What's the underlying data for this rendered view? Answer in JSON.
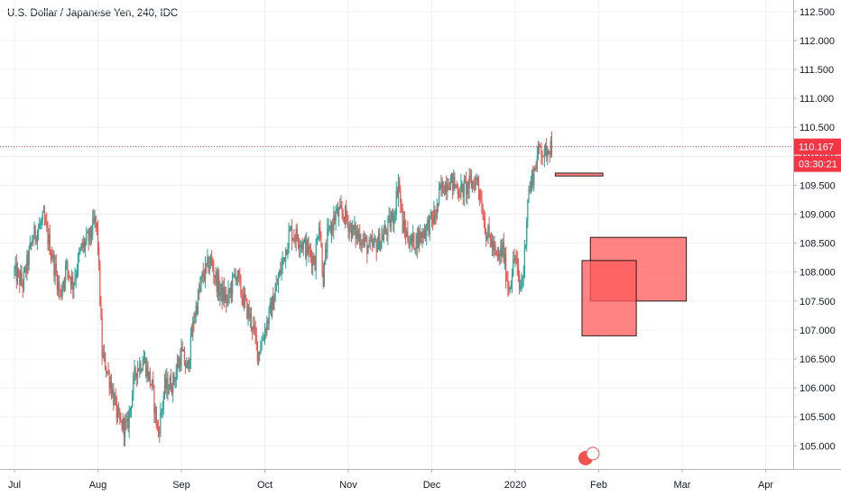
{
  "chart_data": {
    "type": "candlestick",
    "title": "U.S. Dollar / Japanese Yen, 240, IDC",
    "y_ticks": [
      "112.500",
      "112.000",
      "111.500",
      "111.000",
      "110.500",
      "110.000",
      "109.500",
      "109.000",
      "108.500",
      "108.000",
      "107.500",
      "107.000",
      "106.500",
      "106.000",
      "105.500",
      "105.000"
    ],
    "y_tick_values": [
      112.5,
      112.0,
      111.5,
      111.0,
      110.5,
      110.0,
      109.5,
      109.0,
      108.5,
      108.0,
      107.5,
      107.0,
      106.5,
      106.0,
      105.5,
      105.0
    ],
    "ylim": [
      104.6,
      112.7
    ],
    "x_ticks": [
      "Jul",
      "Aug",
      "Sep",
      "Oct",
      "Nov",
      "Dec",
      "2020",
      "Feb",
      "Mar",
      "Apr"
    ],
    "x_tick_months": [
      0,
      1,
      2,
      3,
      4,
      5,
      6,
      7,
      8,
      9
    ],
    "last_price": "110.167",
    "last_price_value": 110.167,
    "countdown": "03:30:21",
    "colors": {
      "up": "#26a69a",
      "down": "#ef5350",
      "price_line": "#f23645",
      "zone_fill": "#ff5a5a",
      "zone_stroke": "#2a1a1a"
    },
    "price_path": [
      [
        0.0,
        108.0
      ],
      [
        0.1,
        107.8
      ],
      [
        0.22,
        108.6
      ],
      [
        0.35,
        108.9
      ],
      [
        0.45,
        108.3
      ],
      [
        0.55,
        107.6
      ],
      [
        0.62,
        108.1
      ],
      [
        0.7,
        107.8
      ],
      [
        0.8,
        108.4
      ],
      [
        0.9,
        108.6
      ],
      [
        0.97,
        108.9
      ],
      [
        1.0,
        108.5
      ],
      [
        1.05,
        106.6
      ],
      [
        1.15,
        106.1
      ],
      [
        1.25,
        105.4
      ],
      [
        1.35,
        105.3
      ],
      [
        1.45,
        106.3
      ],
      [
        1.55,
        106.5
      ],
      [
        1.65,
        106.0
      ],
      [
        1.72,
        105.2
      ],
      [
        1.8,
        106.0
      ],
      [
        1.9,
        106.1
      ],
      [
        2.0,
        106.6
      ],
      [
        2.07,
        106.3
      ],
      [
        2.15,
        107.2
      ],
      [
        2.25,
        107.9
      ],
      [
        2.35,
        108.2
      ],
      [
        2.45,
        107.7
      ],
      [
        2.55,
        107.5
      ],
      [
        2.65,
        108.0
      ],
      [
        2.75,
        107.5
      ],
      [
        2.85,
        107.1
      ],
      [
        2.92,
        106.6
      ],
      [
        3.0,
        107.0
      ],
      [
        3.1,
        107.5
      ],
      [
        3.2,
        108.1
      ],
      [
        3.3,
        108.7
      ],
      [
        3.4,
        108.6
      ],
      [
        3.5,
        108.4
      ],
      [
        3.6,
        108.2
      ],
      [
        3.65,
        108.9
      ],
      [
        3.7,
        107.9
      ],
      [
        3.75,
        108.6
      ],
      [
        3.85,
        109.0
      ],
      [
        3.95,
        109.0
      ],
      [
        4.05,
        108.7
      ],
      [
        4.15,
        108.6
      ],
      [
        4.25,
        108.4
      ],
      [
        4.35,
        108.5
      ],
      [
        4.45,
        108.7
      ],
      [
        4.55,
        109.0
      ],
      [
        4.6,
        109.6
      ],
      [
        4.65,
        108.8
      ],
      [
        4.75,
        108.5
      ],
      [
        4.85,
        108.6
      ],
      [
        4.95,
        108.8
      ],
      [
        5.05,
        109.0
      ],
      [
        5.1,
        109.4
      ],
      [
        5.2,
        109.6
      ],
      [
        5.28,
        109.5
      ],
      [
        5.35,
        109.4
      ],
      [
        5.45,
        109.5
      ],
      [
        5.55,
        109.6
      ],
      [
        5.65,
        108.7
      ],
      [
        5.72,
        108.5
      ],
      [
        5.78,
        108.2
      ],
      [
        5.85,
        108.4
      ],
      [
        5.92,
        107.7
      ],
      [
        6.0,
        108.3
      ],
      [
        6.05,
        107.7
      ],
      [
        6.1,
        108.0
      ],
      [
        6.15,
        109.3
      ],
      [
        6.2,
        109.6
      ],
      [
        6.25,
        109.9
      ],
      [
        6.3,
        110.2
      ],
      [
        6.35,
        110.0
      ],
      [
        6.4,
        110.2
      ],
      [
        6.45,
        110.17
      ]
    ],
    "trade_boxes": [
      {
        "from": 6.48,
        "to": 7.05,
        "top": 109.71,
        "bottom": 109.66
      },
      {
        "from": 6.9,
        "to": 8.05,
        "top": 108.6,
        "bottom": 107.5
      },
      {
        "from": 6.8,
        "to": 7.45,
        "top": 108.2,
        "bottom": 106.9
      }
    ],
    "grid": true,
    "legend": "none"
  }
}
